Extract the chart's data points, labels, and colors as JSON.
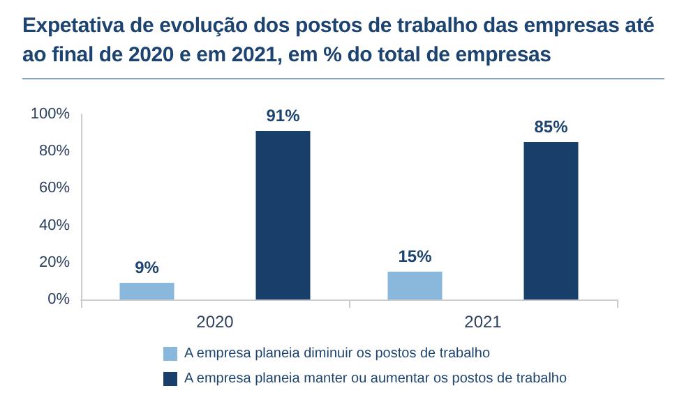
{
  "chart_data": {
    "type": "bar",
    "title": "Expetativa de evolução dos postos de trabalho das empresas até ao final de 2020 e em 2021, em % do total de empresas",
    "categories": [
      "2020",
      "2021"
    ],
    "series": [
      {
        "name": "A empresa planeia diminuir os postos de trabalho",
        "color": "#8ab8dc",
        "values": [
          9,
          15
        ],
        "value_labels": [
          "9%",
          "15%"
        ]
      },
      {
        "name": "A empresa planeia manter ou aumentar os postos de trabalho",
        "color": "#173f6a",
        "values": [
          91,
          85
        ],
        "value_labels": [
          "91%",
          "85%"
        ]
      }
    ],
    "ylim": [
      0,
      100
    ],
    "yticks": [
      {
        "value": 0,
        "label": "0%"
      },
      {
        "value": 20,
        "label": "20%"
      },
      {
        "value": 40,
        "label": "40%"
      },
      {
        "value": 60,
        "label": "60%"
      },
      {
        "value": 80,
        "label": "80%"
      },
      {
        "value": 100,
        "label": "100%"
      }
    ],
    "grid": false,
    "legend": "bottom"
  }
}
